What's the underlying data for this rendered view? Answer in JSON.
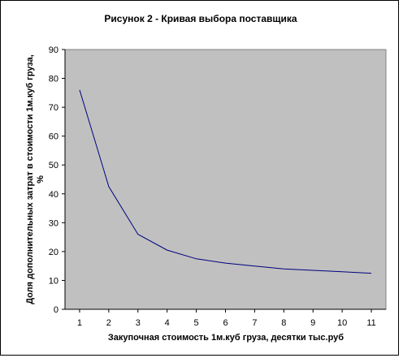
{
  "chart_data": {
    "type": "line",
    "title": "Рисунок 2 - Кривая выбора поставщика",
    "xlabel": "Закупочная стоимость 1м.куб груза, десятки тыс.руб",
    "ylabel_line1": "Доля дополнительных затрат в стоимости 1м.куб груза,",
    "ylabel_line2": "%",
    "x": [
      1,
      2,
      3,
      4,
      5,
      6,
      7,
      8,
      9,
      10,
      11
    ],
    "series": [
      {
        "values": [
          76,
          42.5,
          26,
          20.5,
          17.5,
          16,
          15,
          14,
          13.5,
          13,
          12.5
        ]
      }
    ],
    "xlim": [
      0.5,
      11.5
    ],
    "ylim": [
      0,
      90
    ],
    "x_ticks": [
      "1",
      "2",
      "3",
      "4",
      "5",
      "6",
      "7",
      "8",
      "9",
      "10",
      "11"
    ],
    "y_ticks": [
      "0",
      "10",
      "20",
      "30",
      "40",
      "50",
      "60",
      "70",
      "80",
      "90"
    ],
    "grid": false,
    "legend": "none",
    "colors": {
      "plot_area": "#c0c0c0",
      "line": "#000080",
      "frame": "#000000",
      "border": "#000000",
      "background": "#ffffff"
    }
  }
}
